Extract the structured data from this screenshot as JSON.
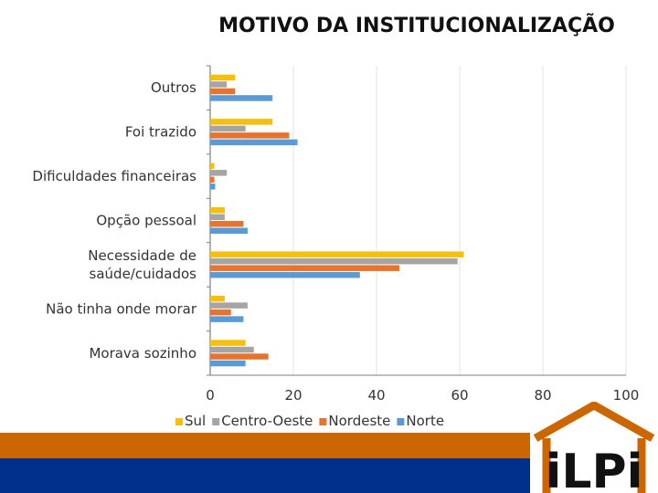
{
  "title": "MOTIVO DA INSTITUCIONALIZAÇÃO",
  "logo": {
    "text": "iLPi"
  },
  "colors": {
    "Sul": "#f5bf0e",
    "Centro-Oeste": "#a5a5a5",
    "Nordeste": "#e6742e",
    "Norte": "#5b9bd5",
    "band_orange": "#cc6600",
    "band_blue": "#00308c"
  },
  "chart_data": {
    "type": "bar",
    "orientation": "horizontal",
    "title": "MOTIVO DA INSTITUCIONALIZAÇÃO",
    "categories": [
      [
        "Outros"
      ],
      [
        "Foi trazido"
      ],
      [
        "Dificuldades financeiras"
      ],
      [
        "Opção pessoal"
      ],
      [
        "Necessidade de",
        "saúde/cuidados"
      ],
      [
        "Não tinha onde morar"
      ],
      [
        "Morava sozinho"
      ]
    ],
    "series": [
      {
        "name": "Sul",
        "color": "#f5bf0e",
        "values": [
          6,
          15,
          1,
          3.5,
          61,
          3.5,
          8.5
        ]
      },
      {
        "name": "Centro-Oeste",
        "color": "#a5a5a5",
        "values": [
          4,
          8.5,
          4,
          3.5,
          59.5,
          9,
          10.5
        ]
      },
      {
        "name": "Nordeste",
        "color": "#e6742e",
        "values": [
          6,
          19,
          1,
          8,
          45.5,
          5,
          14
        ]
      },
      {
        "name": "Norte",
        "color": "#5b9bd5",
        "values": [
          15,
          21,
          1.2,
          9,
          36,
          8,
          8.5
        ]
      }
    ],
    "xlim": [
      0,
      100
    ],
    "xticks": [
      0,
      20,
      40,
      60,
      80,
      100
    ],
    "legend_position": "bottom",
    "grid": true
  }
}
